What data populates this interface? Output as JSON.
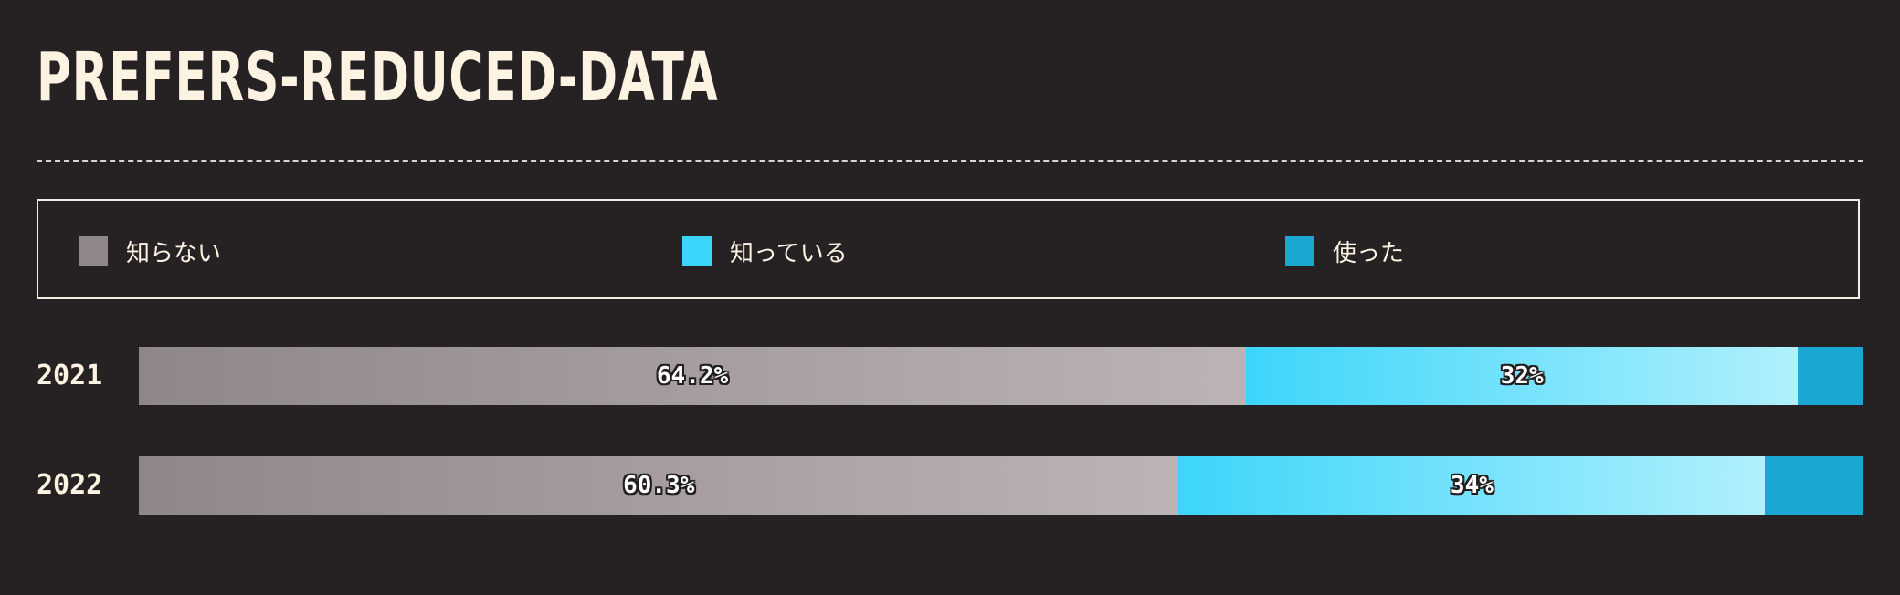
{
  "chart_data": {
    "type": "bar",
    "orientation": "horizontal",
    "stacked": true,
    "title": "PREFERS-REDUCED-DATA",
    "categories": [
      "2021",
      "2022"
    ],
    "series": [
      {
        "name": "知らない",
        "color": "#8f868b",
        "values": [
          64.2,
          60.3
        ],
        "labels": [
          "64.2%",
          "60.3%"
        ]
      },
      {
        "name": "知っている",
        "color": "#3cd5fa",
        "values": [
          32,
          34
        ],
        "labels": [
          "32%",
          "34%"
        ]
      },
      {
        "name": "使った",
        "color": "#1aa8d2",
        "values": [
          3.8,
          5.7
        ],
        "labels": [
          "",
          ""
        ]
      }
    ],
    "xlim": [
      0,
      100
    ],
    "unit": "%",
    "legend_position": "top",
    "grid": false
  }
}
